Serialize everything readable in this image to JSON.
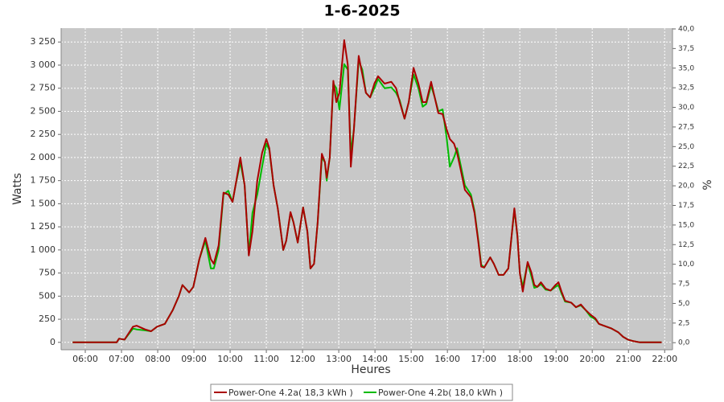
{
  "chart_data": {
    "type": "line",
    "title": "1-6-2025",
    "xlabel": "Heures",
    "ylabel": "Watts",
    "y2label": "%",
    "x": [
      "05:39",
      "06:52",
      "06:56",
      "07:05",
      "07:19",
      "07:25",
      "07:39",
      "07:49",
      "07:59",
      "08:12",
      "08:25",
      "08:35",
      "08:41",
      "08:52",
      "08:59",
      "09:09",
      "09:19",
      "09:28",
      "09:33",
      "09:41",
      "09:49",
      "09:57",
      "10:04",
      "10:09",
      "10:17",
      "10:24",
      "10:31",
      "10:37",
      "10:45",
      "10:53",
      "11:00",
      "11:05",
      "11:12",
      "11:19",
      "11:28",
      "11:33",
      "11:40",
      "11:45",
      "11:52",
      "12:01",
      "12:08",
      "12:13",
      "12:19",
      "12:25",
      "12:32",
      "12:37",
      "12:40",
      "12:45",
      "12:51",
      "12:56",
      "13:01",
      "13:09",
      "13:15",
      "13:20",
      "13:25",
      "13:33",
      "13:39",
      "13:45",
      "13:52",
      "13:59",
      "14:05",
      "14:16",
      "14:27",
      "14:35",
      "14:41",
      "14:49",
      "14:56",
      "15:04",
      "15:12",
      "15:19",
      "15:25",
      "15:33",
      "15:39",
      "15:45",
      "15:52",
      "15:59",
      "16:04",
      "16:11",
      "16:16",
      "16:21",
      "16:29",
      "16:39",
      "16:45",
      "16:51",
      "16:56",
      "17:01",
      "17:11",
      "17:17",
      "17:25",
      "17:33",
      "17:41",
      "17:51",
      "17:56",
      "18:00",
      "18:05",
      "18:13",
      "18:19",
      "18:24",
      "18:29",
      "18:35",
      "18:43",
      "18:51",
      "18:59",
      "19:04",
      "19:09",
      "19:15",
      "19:25",
      "19:33",
      "19:41",
      "19:49",
      "19:57",
      "20:05",
      "20:11",
      "20:19",
      "20:32",
      "20:43",
      "20:51",
      "20:59",
      "21:07",
      "21:19",
      "21:55"
    ],
    "series": [
      {
        "name": "Power-One 4.2a( 18,3 kWh )",
        "color": "#aa0000",
        "values": [
          0,
          0,
          40,
          30,
          170,
          180,
          140,
          120,
          170,
          200,
          350,
          500,
          620,
          540,
          600,
          900,
          1130,
          900,
          850,
          1050,
          1620,
          1600,
          1520,
          1700,
          2000,
          1700,
          940,
          1200,
          1750,
          2050,
          2200,
          2100,
          1700,
          1450,
          1000,
          1100,
          1410,
          1300,
          1080,
          1460,
          1200,
          800,
          850,
          1300,
          2040,
          1950,
          1780,
          2000,
          2830,
          2600,
          2700,
          3270,
          3000,
          1900,
          2300,
          3100,
          2900,
          2700,
          2650,
          2800,
          2880,
          2800,
          2820,
          2750,
          2600,
          2420,
          2600,
          2970,
          2800,
          2600,
          2600,
          2820,
          2650,
          2480,
          2470,
          2300,
          2200,
          2150,
          2050,
          1900,
          1650,
          1570,
          1400,
          1100,
          820,
          810,
          920,
          850,
          730,
          730,
          800,
          1450,
          1150,
          750,
          550,
          870,
          760,
          620,
          600,
          650,
          580,
          560,
          620,
          650,
          550,
          450,
          430,
          380,
          410,
          350,
          300,
          260,
          200,
          180,
          150,
          110,
          60,
          30,
          15,
          0,
          0
        ]
      },
      {
        "name": "Power-One 4.2b( 18,0 kWh )",
        "color": "#00bb00",
        "values": [
          0,
          0,
          40,
          30,
          150,
          140,
          130,
          120,
          170,
          200,
          350,
          500,
          620,
          540,
          600,
          900,
          1100,
          800,
          800,
          1000,
          1600,
          1640,
          1520,
          1700,
          1950,
          1700,
          950,
          1400,
          1600,
          1900,
          2150,
          2080,
          1700,
          1450,
          1000,
          1100,
          1400,
          1300,
          1080,
          1460,
          1200,
          800,
          850,
          1300,
          2000,
          1950,
          1750,
          2000,
          2800,
          2750,
          2520,
          3010,
          2950,
          2050,
          2300,
          3050,
          2950,
          2700,
          2650,
          2750,
          2850,
          2750,
          2760,
          2700,
          2620,
          2420,
          2600,
          2900,
          2750,
          2550,
          2580,
          2780,
          2650,
          2500,
          2520,
          2200,
          1900,
          2000,
          2100,
          1950,
          1700,
          1600,
          1420,
          1120,
          840,
          810,
          920,
          850,
          730,
          730,
          800,
          1440,
          1150,
          750,
          600,
          860,
          720,
          590,
          600,
          630,
          570,
          560,
          600,
          620,
          530,
          440,
          430,
          380,
          400,
          350,
          280,
          250,
          200,
          180,
          150,
          110,
          60,
          30,
          15,
          0,
          0
        ]
      }
    ],
    "xlim": [
      "05:20",
      "22:13"
    ],
    "xticks": [
      "06:00",
      "07:00",
      "08:00",
      "09:00",
      "10:00",
      "11:00",
      "12:00",
      "13:00",
      "14:00",
      "15:00",
      "16:00",
      "17:00",
      "18:00",
      "19:00",
      "20:00",
      "21:00",
      "22:00"
    ],
    "ylim": [
      -80,
      3400
    ],
    "yticks": [
      0,
      250,
      500,
      750,
      {
        "value": 1000,
        "label": "1 000"
      },
      {
        "value": 1250,
        "label": "1 250"
      },
      {
        "value": 1500,
        "label": "1 500"
      },
      {
        "value": 1750,
        "label": "1 750"
      },
      {
        "value": 2000,
        "label": "2 000"
      },
      {
        "value": 2250,
        "label": "2 250"
      },
      {
        "value": 2500,
        "label": "2 500"
      },
      {
        "value": 2750,
        "label": "2 750"
      },
      {
        "value": 3000,
        "label": "3 000"
      },
      {
        "value": 3250,
        "label": "3 250"
      }
    ],
    "y2lim": [
      -0.9,
      40.1
    ],
    "y2ticks": [
      {
        "value": 0,
        "label": "0,0"
      },
      {
        "value": 2.5,
        "label": "2,5"
      },
      {
        "value": 5,
        "label": "5,0"
      },
      {
        "value": 7.5,
        "label": "7,5"
      },
      {
        "value": 10,
        "label": "10,0"
      },
      {
        "value": 12.5,
        "label": "12,5"
      },
      {
        "value": 15,
        "label": "15,0"
      },
      {
        "value": 17.5,
        "label": "17,5"
      },
      {
        "value": 20,
        "label": "20,0"
      },
      {
        "value": 22.5,
        "label": "22,5"
      },
      {
        "value": 25,
        "label": "25,0"
      },
      {
        "value": 27.5,
        "label": "27,5"
      },
      {
        "value": 30,
        "label": "30,0"
      },
      {
        "value": 32.5,
        "label": "32,5"
      },
      {
        "value": 35,
        "label": "35,0"
      },
      {
        "value": 37.5,
        "label": "37,5"
      },
      {
        "value": 40,
        "label": "40,0"
      }
    ],
    "grid": true
  }
}
